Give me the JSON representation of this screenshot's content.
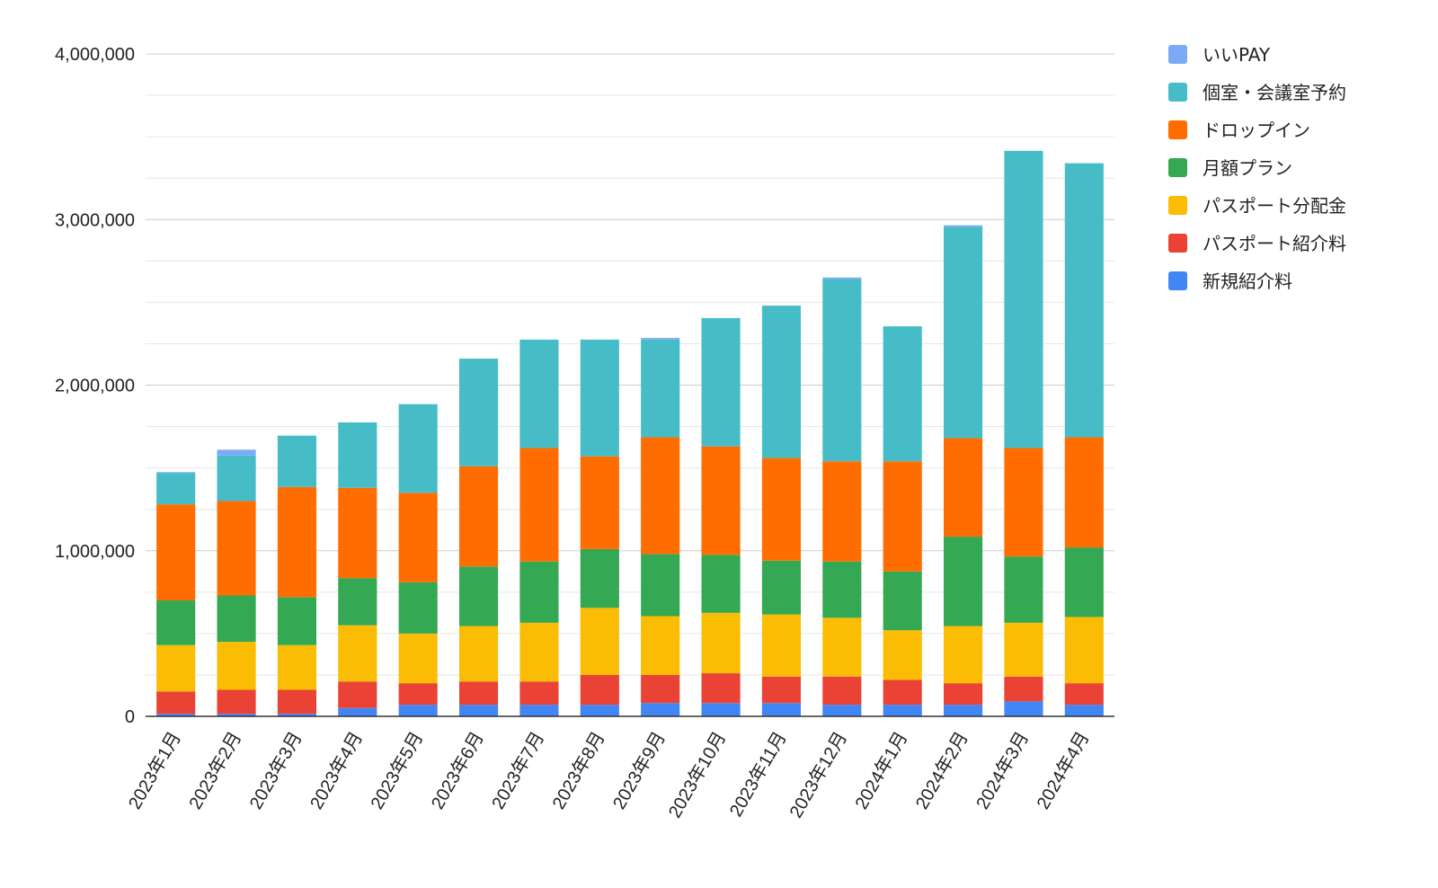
{
  "chart_data": {
    "type": "bar",
    "stacked": true,
    "categories": [
      "2023年1月",
      "2023年2月",
      "2023年3月",
      "2023年4月",
      "2023年5月",
      "2023年6月",
      "2023年7月",
      "2023年8月",
      "2023年9月",
      "2023年10月",
      "2023年11月",
      "2023年12月",
      "2024年1月",
      "2024年2月",
      "2024年3月",
      "2024年4月"
    ],
    "series": [
      {
        "name": "新規紹介料",
        "color": "#4285f4",
        "values": [
          15000,
          15000,
          15000,
          50000,
          70000,
          70000,
          70000,
          70000,
          80000,
          80000,
          80000,
          70000,
          70000,
          70000,
          90000,
          70000
        ]
      },
      {
        "name": "パスポート紹介料",
        "color": "#ea4335",
        "values": [
          135000,
          145000,
          145000,
          160000,
          130000,
          140000,
          140000,
          180000,
          170000,
          180000,
          160000,
          170000,
          150000,
          130000,
          150000,
          130000
        ]
      },
      {
        "name": "パスポート分配金",
        "color": "#fbbc04",
        "values": [
          280000,
          290000,
          270000,
          340000,
          300000,
          335000,
          355000,
          405000,
          355000,
          365000,
          375000,
          355000,
          300000,
          345000,
          325000,
          400000
        ]
      },
      {
        "name": "月額プラン",
        "color": "#34a853",
        "values": [
          270000,
          280000,
          290000,
          285000,
          310000,
          360000,
          370000,
          355000,
          375000,
          350000,
          325000,
          340000,
          355000,
          540000,
          400000,
          420000
        ]
      },
      {
        "name": "ドロップイン",
        "color": "#ff6d01",
        "values": [
          580000,
          570000,
          665000,
          545000,
          540000,
          605000,
          685000,
          560000,
          705000,
          655000,
          620000,
          605000,
          665000,
          595000,
          655000,
          665000
        ]
      },
      {
        "name": "個室・会議室予約",
        "color": "#46bdc6",
        "values": [
          190000,
          275000,
          310000,
          395000,
          535000,
          650000,
          655000,
          705000,
          590000,
          775000,
          920000,
          1100000,
          815000,
          1275000,
          1795000,
          1655000
        ]
      },
      {
        "name": "いいPAY",
        "color": "#7baaf7",
        "values": [
          5000,
          35000,
          0,
          0,
          0,
          0,
          0,
          0,
          10000,
          0,
          0,
          10000,
          0,
          10000,
          0,
          0
        ]
      }
    ],
    "legend_order": [
      "いいPAY",
      "個室・会議室予約",
      "ドロップイン",
      "月額プラン",
      "パスポート分配金",
      "パスポート紹介料",
      "新規紹介料"
    ],
    "ylim": [
      0,
      4000000
    ],
    "yticks": [
      "0",
      "1,000,000",
      "2,000,000",
      "3,000,000",
      "4,000,000"
    ],
    "grid": true,
    "legend_position": "right",
    "title": "",
    "xlabel": "",
    "ylabel": ""
  }
}
